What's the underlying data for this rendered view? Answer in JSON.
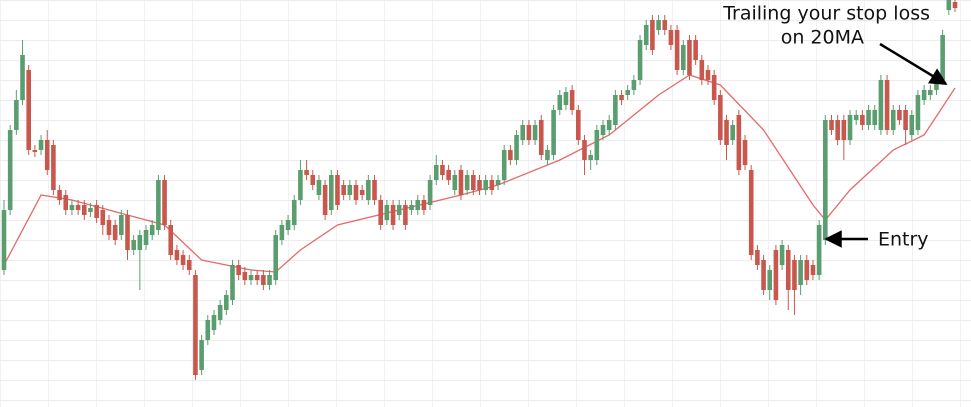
{
  "chart_data": {
    "type": "candlestick",
    "ylim": [
      0,
      407
    ],
    "up_color": "#5a9e6f",
    "down_color": "#c8584d",
    "ma_color": "#e46a6a",
    "annotations": [
      "Trailing your stop loss",
      "on 20MA",
      "Entry"
    ],
    "candles": [
      [
        137,
        207,
        132,
        197
      ],
      [
        197,
        282,
        192,
        277
      ],
      [
        277,
        317,
        272,
        307
      ],
      [
        307,
        367,
        302,
        352
      ],
      [
        337,
        342,
        252,
        257
      ],
      [
        257,
        262,
        250,
        255
      ],
      [
        257,
        272,
        252,
        267
      ],
      [
        267,
        277,
        232,
        237
      ],
      [
        262,
        267,
        212,
        217
      ],
      [
        217,
        222,
        202,
        207
      ],
      [
        212,
        217,
        192,
        197
      ],
      [
        197,
        207,
        192,
        202
      ],
      [
        202,
        207,
        192,
        197
      ],
      [
        202,
        207,
        187,
        192
      ],
      [
        195,
        204,
        190,
        199
      ],
      [
        202,
        207,
        184,
        189
      ],
      [
        197,
        202,
        172,
        182
      ],
      [
        187,
        192,
        167,
        172
      ],
      [
        182,
        187,
        162,
        167
      ],
      [
        172,
        197,
        167,
        192
      ],
      [
        192,
        197,
        147,
        157
      ],
      [
        157,
        172,
        152,
        167
      ],
      [
        157,
        177,
        117,
        172
      ],
      [
        162,
        182,
        157,
        177
      ],
      [
        172,
        187,
        167,
        182
      ],
      [
        177,
        232,
        172,
        227
      ],
      [
        227,
        232,
        177,
        182
      ],
      [
        182,
        187,
        147,
        152
      ],
      [
        157,
        162,
        142,
        147
      ],
      [
        152,
        157,
        137,
        142
      ],
      [
        147,
        152,
        132,
        137
      ],
      [
        132,
        137,
        27,
        32
      ],
      [
        37,
        72,
        32,
        67
      ],
      [
        67,
        92,
        62,
        87
      ],
      [
        77,
        97,
        72,
        92
      ],
      [
        87,
        107,
        82,
        102
      ],
      [
        97,
        117,
        92,
        112
      ],
      [
        107,
        147,
        102,
        142
      ],
      [
        142,
        147,
        127,
        132
      ],
      [
        135,
        140,
        122,
        127
      ],
      [
        127,
        137,
        122,
        132
      ],
      [
        132,
        137,
        122,
        127
      ],
      [
        132,
        137,
        117,
        122
      ],
      [
        122,
        137,
        117,
        132
      ],
      [
        127,
        177,
        122,
        172
      ],
      [
        167,
        187,
        162,
        182
      ],
      [
        177,
        192,
        172,
        187
      ],
      [
        182,
        212,
        177,
        207
      ],
      [
        207,
        247,
        202,
        237
      ],
      [
        237,
        247,
        227,
        232
      ],
      [
        232,
        237,
        217,
        222
      ],
      [
        212,
        232,
        207,
        227
      ],
      [
        222,
        227,
        187,
        192
      ],
      [
        197,
        237,
        192,
        232
      ],
      [
        232,
        237,
        197,
        202
      ],
      [
        222,
        227,
        207,
        212
      ],
      [
        212,
        227,
        207,
        222
      ],
      [
        222,
        227,
        202,
        207
      ],
      [
        217,
        222,
        207,
        212
      ],
      [
        207,
        232,
        202,
        227
      ],
      [
        227,
        232,
        202,
        207
      ],
      [
        207,
        212,
        177,
        182
      ],
      [
        187,
        207,
        182,
        202
      ],
      [
        202,
        207,
        177,
        182
      ],
      [
        192,
        207,
        187,
        202
      ],
      [
        202,
        207,
        177,
        182
      ],
      [
        197,
        207,
        192,
        202
      ],
      [
        197,
        212,
        192,
        207
      ],
      [
        207,
        212,
        192,
        197
      ],
      [
        202,
        232,
        197,
        227
      ],
      [
        227,
        252,
        222,
        242
      ],
      [
        242,
        247,
        227,
        232
      ],
      [
        237,
        242,
        222,
        227
      ],
      [
        217,
        237,
        212,
        232
      ],
      [
        237,
        242,
        207,
        212
      ],
      [
        217,
        237,
        212,
        232
      ],
      [
        232,
        237,
        212,
        217
      ],
      [
        227,
        232,
        212,
        217
      ],
      [
        217,
        232,
        212,
        227
      ],
      [
        227,
        232,
        212,
        217
      ],
      [
        222,
        232,
        217,
        227
      ],
      [
        227,
        262,
        222,
        257
      ],
      [
        257,
        262,
        242,
        247
      ],
      [
        247,
        277,
        242,
        272
      ],
      [
        267,
        287,
        262,
        282
      ],
      [
        282,
        287,
        262,
        267
      ],
      [
        267,
        287,
        262,
        282
      ],
      [
        287,
        292,
        247,
        252
      ],
      [
        247,
        262,
        242,
        257
      ],
      [
        252,
        302,
        247,
        297
      ],
      [
        297,
        317,
        292,
        312
      ],
      [
        302,
        320,
        297,
        315
      ],
      [
        317,
        322,
        292,
        297
      ],
      [
        297,
        302,
        262,
        267
      ],
      [
        267,
        272,
        232,
        247
      ],
      [
        247,
        257,
        237,
        252
      ],
      [
        247,
        282,
        242,
        277
      ],
      [
        272,
        287,
        267,
        282
      ],
      [
        277,
        292,
        272,
        287
      ],
      [
        282,
        317,
        277,
        312
      ],
      [
        312,
        317,
        302,
        307
      ],
      [
        312,
        322,
        307,
        317
      ],
      [
        317,
        332,
        312,
        327
      ],
      [
        327,
        372,
        322,
        367
      ],
      [
        362,
        387,
        357,
        382
      ],
      [
        387,
        392,
        352,
        357
      ],
      [
        377,
        392,
        372,
        387
      ],
      [
        387,
        392,
        372,
        377
      ],
      [
        377,
        382,
        357,
        362
      ],
      [
        377,
        382,
        332,
        337
      ],
      [
        337,
        367,
        332,
        362
      ],
      [
        367,
        372,
        327,
        332
      ],
      [
        367,
        372,
        342,
        347
      ],
      [
        347,
        352,
        322,
        327
      ],
      [
        337,
        342,
        322,
        327
      ],
      [
        332,
        337,
        302,
        307
      ],
      [
        312,
        317,
        262,
        267
      ],
      [
        287,
        292,
        247,
        262
      ],
      [
        267,
        287,
        262,
        282
      ],
      [
        292,
        297,
        232,
        237
      ],
      [
        267,
        272,
        237,
        242
      ],
      [
        237,
        242,
        147,
        152
      ],
      [
        157,
        162,
        137,
        142
      ],
      [
        147,
        152,
        112,
        117
      ],
      [
        117,
        142,
        107,
        137
      ],
      [
        157,
        162,
        102,
        107
      ],
      [
        142,
        167,
        137,
        162
      ],
      [
        157,
        162,
        97,
        117
      ],
      [
        147,
        152,
        92,
        117
      ],
      [
        122,
        152,
        112,
        147
      ],
      [
        147,
        152,
        122,
        127
      ],
      [
        142,
        147,
        127,
        132
      ],
      [
        132,
        187,
        127,
        182
      ],
      [
        167,
        292,
        162,
        287
      ],
      [
        287,
        292,
        272,
        277
      ],
      [
        287,
        292,
        262,
        267
      ],
      [
        287,
        292,
        247,
        267
      ],
      [
        267,
        297,
        262,
        292
      ],
      [
        287,
        297,
        282,
        292
      ],
      [
        292,
        297,
        277,
        282
      ],
      [
        282,
        302,
        277,
        297
      ],
      [
        282,
        302,
        277,
        297
      ],
      [
        277,
        332,
        272,
        327
      ],
      [
        327,
        332,
        272,
        277
      ],
      [
        277,
        302,
        272,
        297
      ],
      [
        297,
        302,
        282,
        287
      ],
      [
        297,
        302,
        262,
        277
      ],
      [
        272,
        297,
        267,
        292
      ],
      [
        277,
        317,
        272,
        312
      ],
      [
        307,
        322,
        302,
        317
      ],
      [
        312,
        322,
        307,
        317
      ],
      [
        317,
        332,
        312,
        327
      ],
      [
        327,
        377,
        322,
        372
      ],
      [
        397,
        407,
        392,
        407
      ],
      [
        405,
        407,
        395,
        399
      ]
    ],
    "ma": {
      "x": [
        0,
        6,
        11,
        20,
        26,
        32,
        40,
        44,
        48,
        54,
        64,
        74,
        80,
        90,
        98,
        106,
        111,
        116,
        123,
        131,
        133,
        137,
        144,
        149,
        154
      ],
      "values": [
        142,
        212,
        207,
        192,
        182,
        147,
        137,
        135,
        157,
        182,
        197,
        212,
        222,
        247,
        272,
        312,
        332,
        322,
        277,
        202,
        187,
        217,
        257,
        272,
        319
      ]
    }
  }
}
